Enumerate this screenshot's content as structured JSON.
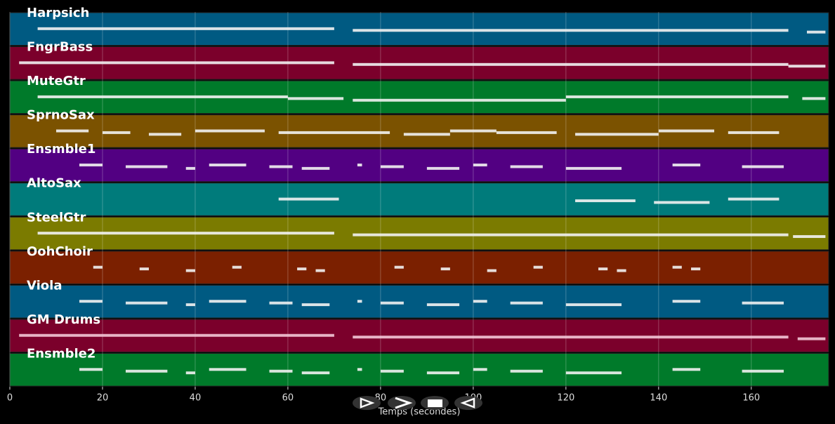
{
  "chart_data": {
    "type": "pianoroll",
    "xlabel": "Temps (secondes)",
    "xlim": [
      0,
      176.7
    ],
    "xticks": [
      0,
      20,
      40,
      60,
      80,
      100,
      120,
      140,
      160
    ],
    "grid": true,
    "tracks": [
      {
        "name": "Harpsich",
        "color": "#005a82",
        "notes": [
          [
            6,
            70
          ],
          [
            74,
            168
          ],
          [
            172,
            176
          ]
        ]
      },
      {
        "name": "FngrBass",
        "color": "#7b002b",
        "notes": [
          [
            2,
            70
          ],
          [
            74,
            168
          ],
          [
            168,
            176
          ]
        ]
      },
      {
        "name": "MuteGtr",
        "color": "#007a2a",
        "notes": [
          [
            6,
            60
          ],
          [
            60,
            72
          ],
          [
            74,
            120
          ],
          [
            120,
            168
          ],
          [
            171,
            176
          ]
        ]
      },
      {
        "name": "SprnoSax",
        "color": "#7b5200",
        "notes": [
          [
            10,
            17
          ],
          [
            20,
            26
          ],
          [
            30,
            37
          ],
          [
            40,
            55
          ],
          [
            58,
            82
          ],
          [
            85,
            95
          ],
          [
            95,
            105
          ],
          [
            105,
            118
          ],
          [
            122,
            140
          ],
          [
            140,
            152
          ],
          [
            155,
            166
          ]
        ]
      },
      {
        "name": "Ensmble1",
        "color": "#520082",
        "notes": [
          [
            15,
            20
          ],
          [
            25,
            34
          ],
          [
            38,
            40
          ],
          [
            43,
            51
          ],
          [
            56,
            61
          ],
          [
            63,
            69
          ],
          [
            75,
            76
          ],
          [
            80,
            85
          ],
          [
            90,
            97
          ],
          [
            100,
            103
          ],
          [
            108,
            115
          ],
          [
            120,
            132
          ],
          [
            143,
            149
          ],
          [
            158,
            167
          ]
        ]
      },
      {
        "name": "AltoSax",
        "color": "#007b7b",
        "notes": [
          [
            58,
            71
          ],
          [
            122,
            135
          ],
          [
            139,
            151
          ],
          [
            155,
            166
          ]
        ]
      },
      {
        "name": "SteelGtr",
        "color": "#7b7b00",
        "notes": [
          [
            6,
            70
          ],
          [
            74,
            168
          ],
          [
            169,
            176
          ]
        ]
      },
      {
        "name": "OohChoir",
        "color": "#7b2000",
        "notes": [
          [
            18,
            20
          ],
          [
            28,
            30
          ],
          [
            38,
            40
          ],
          [
            48,
            50
          ],
          [
            62,
            64
          ],
          [
            66,
            68
          ],
          [
            83,
            85
          ],
          [
            93,
            95
          ],
          [
            103,
            105
          ],
          [
            113,
            115
          ],
          [
            127,
            129
          ],
          [
            131,
            133
          ],
          [
            143,
            145
          ],
          [
            147,
            149
          ]
        ]
      },
      {
        "name": "Viola",
        "color": "#005a82",
        "notes": [
          [
            15,
            20
          ],
          [
            25,
            34
          ],
          [
            38,
            40
          ],
          [
            43,
            51
          ],
          [
            56,
            61
          ],
          [
            63,
            69
          ],
          [
            75,
            76
          ],
          [
            80,
            85
          ],
          [
            90,
            97
          ],
          [
            100,
            103
          ],
          [
            108,
            115
          ],
          [
            120,
            132
          ],
          [
            143,
            149
          ],
          [
            158,
            167
          ]
        ]
      },
      {
        "name": "GM Drums",
        "color": "#7b002b",
        "notes": [
          [
            2,
            70
          ],
          [
            74,
            168
          ],
          [
            170,
            176
          ]
        ]
      },
      {
        "name": "Ensmble2",
        "color": "#007a2a",
        "notes": [
          [
            15,
            20
          ],
          [
            25,
            34
          ],
          [
            38,
            40
          ],
          [
            43,
            51
          ],
          [
            56,
            61
          ],
          [
            63,
            69
          ],
          [
            75,
            76
          ],
          [
            80,
            85
          ],
          [
            90,
            97
          ],
          [
            100,
            103
          ],
          [
            108,
            115
          ],
          [
            120,
            132
          ],
          [
            143,
            149
          ],
          [
            158,
            167
          ]
        ]
      }
    ]
  }
}
